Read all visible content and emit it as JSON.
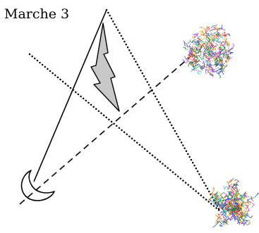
{
  "title": "Marche 3",
  "colors": {
    "stroke": "#000000",
    "bolt_fill": "#c8c8c8",
    "scribble": [
      "#e03a3a",
      "#2b8a2b",
      "#2a4fd6",
      "#d6b82a",
      "#b04ad6",
      "#20b8c8",
      "#ff7f00",
      "#444444"
    ]
  },
  "figures": [
    {
      "name": "lightning-bolt",
      "kind": "shaded-polygon"
    },
    {
      "name": "crescent-moon",
      "kind": "outline"
    },
    {
      "name": "round-scribble-figure",
      "kind": "multicolor-scribble"
    },
    {
      "name": "star-scribble-figure",
      "kind": "multicolor-scribble"
    }
  ],
  "lines": [
    {
      "name": "solid-line",
      "style": "solid"
    },
    {
      "name": "dashed-line",
      "style": "dashed"
    },
    {
      "name": "dotted-line-right",
      "style": "dotted"
    },
    {
      "name": "dotted-line-diagonal",
      "style": "dotted"
    }
  ]
}
